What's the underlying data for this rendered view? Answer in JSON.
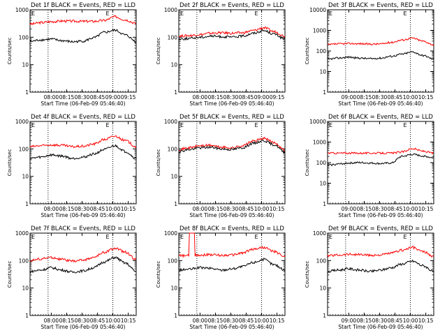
{
  "colors": {
    "events": "#000000",
    "lld": "#ff0000",
    "axis": "#000000",
    "background": "#ffffff"
  },
  "chart_data": [
    {
      "type": "line",
      "title": "Det 1f BLACK = Events, RED = LLD",
      "xlabel": "Start Time (06-Feb-09 05:46:40)",
      "ylabel": "Counts/sec",
      "scale_y": "log",
      "ylim": [
        1,
        1000
      ],
      "y_ticks": [
        "1",
        "10",
        "100",
        "1000"
      ],
      "x_ticks": [
        "08:00",
        "08:15",
        "08:30",
        "08:45",
        "09:00",
        "09:15"
      ],
      "vertical_markers": [
        "08:00",
        "09:00"
      ],
      "marker_labels": [
        "E",
        "E"
      ],
      "series": [
        {
          "name": "LLD",
          "color": "#ff0000",
          "values": [
            300,
            340,
            370,
            390,
            385,
            380,
            380,
            410,
            560,
            430,
            320
          ]
        },
        {
          "name": "Events",
          "color": "#000000",
          "values": [
            70,
            80,
            85,
            75,
            68,
            72,
            95,
            150,
            180,
            120,
            70
          ]
        }
      ]
    },
    {
      "type": "line",
      "title": "Det 2f BLACK = Events, RED = LLD",
      "xlabel": "Start Time (06-Feb-09 05:46:40)",
      "ylabel": "Counts/sec",
      "scale_y": "log",
      "ylim": [
        1,
        1000
      ],
      "y_ticks": [
        "1",
        "10",
        "100",
        "1000"
      ],
      "x_ticks": [
        "08:00",
        "08:15",
        "08:30",
        "08:45",
        "09:00",
        "09:15"
      ],
      "vertical_markers": [
        "08:00",
        "09:00"
      ],
      "marker_labels": [
        "E",
        "E"
      ],
      "series": [
        {
          "name": "LLD",
          "color": "#ff0000",
          "values": [
            110,
            115,
            125,
            140,
            145,
            140,
            145,
            175,
            220,
            160,
            110
          ]
        },
        {
          "name": "Events",
          "color": "#000000",
          "values": [
            85,
            90,
            100,
            110,
            105,
            100,
            110,
            140,
            175,
            130,
            85
          ]
        }
      ]
    },
    {
      "type": "line",
      "title": "Det 3f BLACK = Events, RED = LLD",
      "xlabel": "Start Time (06-Feb-09 05:46:40)",
      "ylabel": "Counts/sec",
      "scale_y": "log",
      "ylim": [
        1,
        10000
      ],
      "y_ticks": [
        "1",
        "10",
        "100",
        "1000",
        "10000"
      ],
      "x_ticks": [
        "09:00",
        "08:15",
        "08:30",
        "08:45",
        "10:00",
        "10:15"
      ],
      "vertical_markers": [
        "09:00",
        "10:00"
      ],
      "marker_labels": [
        "E",
        "E"
      ],
      "series": [
        {
          "name": "LLD",
          "color": "#ff0000",
          "values": [
            200,
            220,
            230,
            225,
            215,
            220,
            260,
            340,
            420,
            300,
            200
          ]
        },
        {
          "name": "Events",
          "color": "#000000",
          "values": [
            40,
            45,
            50,
            45,
            42,
            45,
            55,
            70,
            90,
            60,
            40
          ]
        }
      ]
    },
    {
      "type": "line",
      "title": "Det 4f BLACK = Events, RED = LLD",
      "xlabel": "Start Time (06-Feb-09 05:46:40)",
      "ylabel": "Counts/sec",
      "scale_y": "log",
      "ylim": [
        1,
        1000
      ],
      "y_ticks": [
        "1",
        "10",
        "100",
        "1000"
      ],
      "x_ticks": [
        "08:00",
        "08:15",
        "08:30",
        "08:45",
        "10:00",
        "10:15"
      ],
      "vertical_markers": [
        "08:00",
        "10:00"
      ],
      "marker_labels": [
        "E",
        "E"
      ],
      "series": [
        {
          "name": "LLD",
          "color": "#ff0000",
          "values": [
            120,
            130,
            140,
            135,
            120,
            125,
            150,
            220,
            290,
            200,
            120
          ]
        },
        {
          "name": "Events",
          "color": "#000000",
          "values": [
            45,
            50,
            60,
            55,
            45,
            50,
            65,
            95,
            130,
            80,
            45
          ]
        }
      ]
    },
    {
      "type": "line",
      "title": "Det 5f BLACK = Events, RED = LLD",
      "xlabel": "Start Time (06-Feb-09 05:46:40)",
      "ylabel": "Counts/sec",
      "scale_y": "log",
      "ylim": [
        1,
        1000
      ],
      "y_ticks": [
        "1",
        "10",
        "100",
        "1000"
      ],
      "x_ticks": [
        "08:00",
        "08:15",
        "08:30",
        "08:45",
        "10:00",
        "10:15"
      ],
      "vertical_markers": [
        "08:00",
        "10:00"
      ],
      "marker_labels": [
        "E",
        "E"
      ],
      "series": [
        {
          "name": "LLD",
          "color": "#ff0000",
          "values": [
            95,
            110,
            130,
            135,
            115,
            110,
            130,
            190,
            240,
            170,
            90
          ]
        },
        {
          "name": "Events",
          "color": "#000000",
          "values": [
            80,
            95,
            110,
            115,
            100,
            95,
            110,
            160,
            200,
            140,
            75
          ]
        }
      ]
    },
    {
      "type": "line",
      "title": "Det 6f BLACK = Events, RED = LLD",
      "xlabel": "Start Time (06-Feb-09 05:46:40)",
      "ylabel": "Counts/sec",
      "scale_y": "log",
      "ylim": [
        1,
        10000
      ],
      "y_ticks": [
        "1",
        "10",
        "100",
        "1000",
        "10000"
      ],
      "x_ticks": [
        "09:00",
        "08:15",
        "08:30",
        "08:45",
        "10:00",
        "10:15"
      ],
      "vertical_markers": [
        "09:00",
        "10:00"
      ],
      "marker_labels": [
        "E",
        "E"
      ],
      "series": [
        {
          "name": "LLD",
          "color": "#ff0000",
          "values": [
            290,
            290,
            290,
            290,
            290,
            290,
            290,
            330,
            480,
            360,
            290
          ]
        },
        {
          "name": "Events",
          "color": "#000000",
          "values": [
            75,
            85,
            95,
            100,
            95,
            90,
            95,
            200,
            250,
            210,
            170
          ]
        }
      ]
    },
    {
      "type": "line",
      "title": "Det 7f BLACK = Events, RED = LLD",
      "xlabel": "Start Time (06-Feb-09 05:46:40)",
      "ylabel": "Counts/sec",
      "scale_y": "log",
      "ylim": [
        1,
        1000
      ],
      "y_ticks": [
        "1",
        "10",
        "100",
        "1000"
      ],
      "x_ticks": [
        "08:00",
        "08:15",
        "08:30",
        "08:45",
        "10:00",
        "10:15"
      ],
      "vertical_markers": [
        "08:00",
        "10:00"
      ],
      "marker_labels": [
        "E",
        "E"
      ],
      "series": [
        {
          "name": "LLD",
          "color": "#ff0000",
          "values": [
            100,
            115,
            130,
            110,
            95,
            105,
            130,
            200,
            280,
            200,
            110
          ]
        },
        {
          "name": "Events",
          "color": "#000000",
          "values": [
            40,
            45,
            55,
            45,
            38,
            42,
            55,
            90,
            130,
            80,
            40
          ]
        }
      ]
    },
    {
      "type": "line",
      "title": "Det 8f BLACK = Events, RED = LLD",
      "xlabel": "Start Time (06-Feb-09 05:46:40)",
      "ylabel": "Counts/sec",
      "scale_y": "log",
      "ylim": [
        1,
        1000
      ],
      "y_ticks": [
        "1",
        "10",
        "100",
        "1000"
      ],
      "x_ticks": [
        "08:00",
        "08:15",
        "08:30",
        "08:45",
        "10:00",
        "10:15"
      ],
      "vertical_markers": [
        "08:00",
        "10:00"
      ],
      "marker_labels": [
        "E",
        "E"
      ],
      "spikes": [
        0.1,
        0.15
      ],
      "series": [
        {
          "name": "LLD",
          "color": "#ff0000",
          "values": [
            150,
            150,
            160,
            165,
            155,
            160,
            190,
            260,
            300,
            210,
            140
          ]
        },
        {
          "name": "Events",
          "color": "#000000",
          "values": [
            45,
            48,
            55,
            52,
            45,
            50,
            60,
            85,
            110,
            70,
            45
          ]
        }
      ]
    },
    {
      "type": "line",
      "title": "Det 9f BLACK = Events, RED = LLD",
      "xlabel": "Start Time (06-Feb-09 05:46:40)",
      "ylabel": "Counts/sec",
      "scale_y": "log",
      "ylim": [
        1,
        1000
      ],
      "y_ticks": [
        "1",
        "10",
        "100",
        "1000"
      ],
      "x_ticks": [
        "09:00",
        "08:15",
        "08:30",
        "08:45",
        "10:00",
        "10:15"
      ],
      "vertical_markers": [
        "09:00",
        "10:00"
      ],
      "marker_labels": [
        "E",
        "E"
      ],
      "series": [
        {
          "name": "LLD",
          "color": "#ff0000",
          "values": [
            150,
            160,
            170,
            165,
            155,
            160,
            185,
            240,
            300,
            210,
            140
          ]
        },
        {
          "name": "Events",
          "color": "#000000",
          "values": [
            40,
            45,
            50,
            45,
            40,
            45,
            55,
            75,
            95,
            65,
            40
          ]
        }
      ]
    }
  ]
}
